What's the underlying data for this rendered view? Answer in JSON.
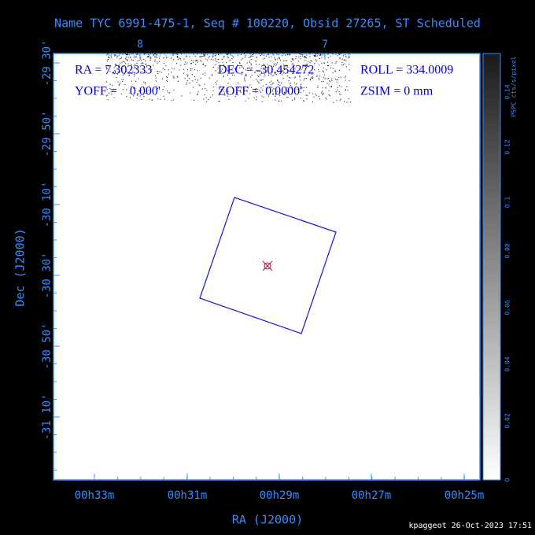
{
  "header": {
    "title": "Name TYC 6991-475-1, Seq # 100220, Obsid 27265, ST Scheduled"
  },
  "info": [
    [
      "RA = 7.302333",
      "DEC = -30.454272",
      "ROLL = 334.0009"
    ],
    [
      "YOFF =    0.000'",
      "ZOFF =  0.0000'",
      "ZSIM = 0 mm"
    ]
  ],
  "axes": {
    "y_label": "Dec (J2000)",
    "x_label": "RA (J2000)",
    "y_ticks": [
      "-29 30'",
      "-29 50'",
      "-30 10'",
      "-30 30'",
      "-30 50'",
      "-31 10'"
    ],
    "x_ticks": [
      "00h33m",
      "00h31m",
      "00h29m",
      "00h27m",
      "00h25m"
    ],
    "top_ticks": [
      "8",
      "7"
    ]
  },
  "colorbar": {
    "label": "PSPC cts/s/pixel",
    "ticks": [
      "0",
      "0.02",
      "0.04",
      "0.06",
      "0.08",
      "0.1",
      "0.12",
      "0.14"
    ]
  },
  "footer": "kpaggeot 26-Oct-2023 17:51"
}
